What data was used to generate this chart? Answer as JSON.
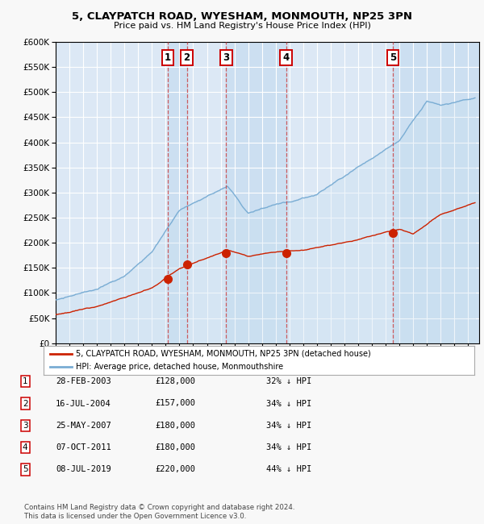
{
  "title": "5, CLAYPATCH ROAD, WYESHAM, MONMOUTH, NP25 3PN",
  "subtitle": "Price paid vs. HM Land Registry's House Price Index (HPI)",
  "background_color": "#f8f8f8",
  "plot_bg_color": "#dce8f5",
  "grid_color": "#ffffff",
  "hpi_color": "#7aadd4",
  "hpi_fill_color": "#c8dff0",
  "price_color": "#cc2200",
  "ylim": [
    0,
    600000
  ],
  "yticks": [
    0,
    50000,
    100000,
    150000,
    200000,
    250000,
    300000,
    350000,
    400000,
    450000,
    500000,
    550000,
    600000
  ],
  "xlim_start": 1995.0,
  "xlim_end": 2025.8,
  "sales": [
    {
      "num": 1,
      "date": "28-FEB-2003",
      "year": 2003.16,
      "price": 128000,
      "pct": "32%"
    },
    {
      "num": 2,
      "date": "16-JUL-2004",
      "year": 2004.54,
      "price": 157000,
      "pct": "34%"
    },
    {
      "num": 3,
      "date": "25-MAY-2007",
      "year": 2007.4,
      "price": 180000,
      "pct": "34%"
    },
    {
      "num": 4,
      "date": "07-OCT-2011",
      "year": 2011.77,
      "price": 180000,
      "pct": "34%"
    },
    {
      "num": 5,
      "date": "08-JUL-2019",
      "year": 2019.52,
      "price": 220000,
      "pct": "44%"
    }
  ],
  "legend_line1": "5, CLAYPATCH ROAD, WYESHAM, MONMOUTH, NP25 3PN (detached house)",
  "legend_line2": "HPI: Average price, detached house, Monmouthshire",
  "footer": "Contains HM Land Registry data © Crown copyright and database right 2024.\nThis data is licensed under the Open Government Licence v3.0.",
  "table_rows": [
    [
      "1",
      "28-FEB-2003",
      "£128,000",
      "32% ↓ HPI"
    ],
    [
      "2",
      "16-JUL-2004",
      "£157,000",
      "34% ↓ HPI"
    ],
    [
      "3",
      "25-MAY-2007",
      "£180,000",
      "34% ↓ HPI"
    ],
    [
      "4",
      "07-OCT-2011",
      "£180,000",
      "34% ↓ HPI"
    ],
    [
      "5",
      "08-JUL-2019",
      "£220,000",
      "44% ↓ HPI"
    ]
  ]
}
